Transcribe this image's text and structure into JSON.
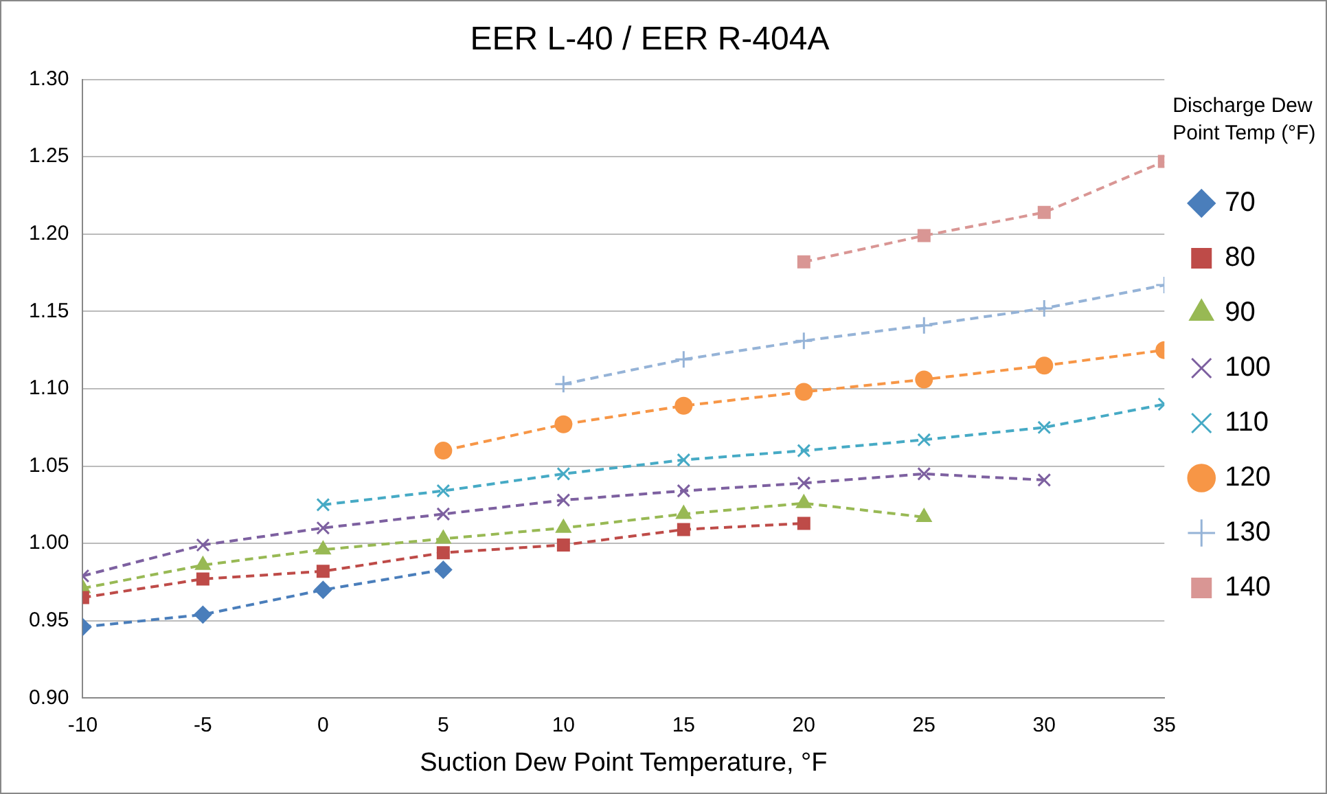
{
  "chart_data": {
    "type": "line",
    "title": "EER L-40 / EER R-404A",
    "xlabel": "Suction Dew Point Temperature, °F",
    "legend_title": "Discharge Dew Point Temp (°F)",
    "xlim": [
      -10,
      35
    ],
    "xticks": [
      -10,
      -5,
      0,
      5,
      10,
      15,
      20,
      25,
      30,
      35
    ],
    "ylim": [
      0.9,
      1.3
    ],
    "yticks": [
      {
        "value": 0.9,
        "label": "0.90"
      },
      0.95,
      {
        "value": 1.0,
        "label": "1.00"
      },
      1.05,
      {
        "value": 1.1,
        "label": "1.10"
      },
      1.15,
      {
        "value": 1.2,
        "label": "1.20"
      },
      1.25,
      {
        "value": 1.3,
        "label": "1.30"
      }
    ],
    "grid": "y",
    "legend": "right",
    "line_style": "dashed",
    "series": [
      {
        "name": "70",
        "color": "#4a7ebb",
        "marker": "diamond",
        "x": [
          -10,
          -5,
          0,
          5
        ],
        "values": [
          0.946,
          0.954,
          0.97,
          0.983
        ]
      },
      {
        "name": "80",
        "color": "#be4b48",
        "marker": "square",
        "x": [
          -10,
          -5,
          0,
          5,
          10,
          15,
          20
        ],
        "values": [
          0.965,
          0.977,
          0.982,
          0.994,
          0.999,
          1.009,
          1.013
        ]
      },
      {
        "name": "90",
        "color": "#98b954",
        "marker": "triangle",
        "x": [
          -10,
          -5,
          0,
          5,
          10,
          15,
          20,
          25
        ],
        "values": [
          0.971,
          0.986,
          0.996,
          1.003,
          1.01,
          1.019,
          1.026,
          1.017
        ]
      },
      {
        "name": "100",
        "color": "#7d60a0",
        "marker": "cross",
        "x": [
          -10,
          -5,
          0,
          5,
          10,
          15,
          20,
          25,
          30
        ],
        "values": [
          0.979,
          0.999,
          1.01,
          1.019,
          1.028,
          1.034,
          1.039,
          1.045,
          1.041
        ]
      },
      {
        "name": "110",
        "color": "#46aac5",
        "marker": "cross",
        "x": [
          0,
          5,
          10,
          15,
          20,
          25,
          30,
          35
        ],
        "values": [
          1.025,
          1.034,
          1.045,
          1.054,
          1.06,
          1.067,
          1.075,
          1.09
        ]
      },
      {
        "name": "120",
        "color": "#f79646",
        "marker": "circle",
        "x": [
          5,
          10,
          15,
          20,
          25,
          30,
          35
        ],
        "values": [
          1.06,
          1.077,
          1.089,
          1.098,
          1.106,
          1.115,
          1.125
        ]
      },
      {
        "name": "130",
        "color": "#95b3d7",
        "marker": "plus",
        "x": [
          10,
          15,
          20,
          25,
          30,
          35
        ],
        "values": [
          1.103,
          1.119,
          1.131,
          1.141,
          1.152,
          1.167
        ]
      },
      {
        "name": "140",
        "color": "#d99694",
        "marker": "square",
        "x": [
          20,
          25,
          30,
          35
        ],
        "values": [
          1.182,
          1.199,
          1.214,
          1.247
        ]
      }
    ]
  }
}
